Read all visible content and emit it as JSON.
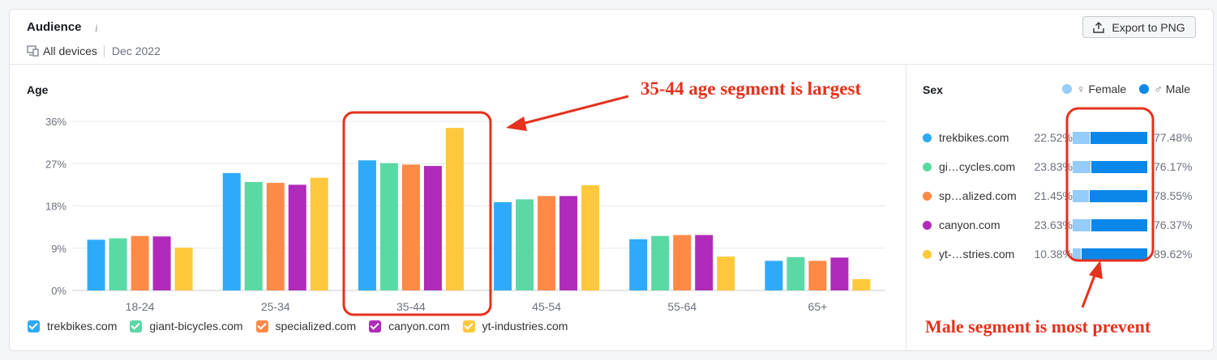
{
  "header": {
    "title": "Audience",
    "info_icon": "i",
    "device": "All devices",
    "date": "Dec 2022",
    "export_label": "Export to PNG"
  },
  "age": {
    "title": "Age"
  },
  "sex": {
    "title": "Sex",
    "legend_female": "Female",
    "legend_male": "Male",
    "female_symbol": "♀",
    "male_symbol": "♂",
    "colors": {
      "female": "#95ccf9",
      "male": "#0b87ea"
    },
    "rows": [
      {
        "name": "trekbikes.com",
        "female": "22.52%",
        "male": "77.48%",
        "color": "#2eaaf9"
      },
      {
        "name": "gi…cycles.com",
        "female": "23.83%",
        "male": "76.17%",
        "color": "#5ad9a4"
      },
      {
        "name": "sp…alized.com",
        "female": "21.45%",
        "male": "78.55%",
        "color": "#ff8a47"
      },
      {
        "name": "canyon.com",
        "female": "23.63%",
        "male": "76.37%",
        "color": "#b02bba"
      },
      {
        "name": "yt-…stries.com",
        "female": "10.38%",
        "male": "89.62%",
        "color": "#ffc83c"
      }
    ]
  },
  "annotations": {
    "age_note": "35-44 age segment is largest",
    "sex_note": "Male segment is most prevent"
  },
  "chart_data": [
    {
      "type": "bar",
      "title": "Age",
      "categories": [
        "18-24",
        "25-34",
        "35-44",
        "45-54",
        "55-64",
        "65+"
      ],
      "y_ticks": [
        "0%",
        "9%",
        "18%",
        "27%",
        "36%"
      ],
      "ylim": [
        0,
        36
      ],
      "grid": true,
      "legend_position": "bottom",
      "series": [
        {
          "name": "trekbikes.com",
          "color": "#2eaaf9",
          "values": [
            10.8,
            25.0,
            27.7,
            18.8,
            10.9,
            6.3
          ]
        },
        {
          "name": "giant-bicycles.com",
          "color": "#5ad9a4",
          "values": [
            11.1,
            23.1,
            27.1,
            19.4,
            11.6,
            7.1
          ]
        },
        {
          "name": "specialized.com",
          "color": "#ff8a47",
          "values": [
            11.6,
            22.9,
            26.8,
            20.1,
            11.8,
            6.3
          ]
        },
        {
          "name": "canyon.com",
          "color": "#b02bba",
          "values": [
            11.5,
            22.5,
            26.5,
            20.1,
            11.8,
            7.0
          ]
        },
        {
          "name": "yt-industries.com",
          "color": "#ffc83c",
          "values": [
            9.1,
            24.0,
            34.6,
            22.4,
            7.2,
            2.4
          ]
        }
      ]
    },
    {
      "type": "bar",
      "title": "Sex",
      "categories": [
        "trekbikes.com",
        "gi…cycles.com",
        "sp…alized.com",
        "canyon.com",
        "yt-…stries.com"
      ],
      "series": [
        {
          "name": "Female",
          "values": [
            22.52,
            23.83,
            21.45,
            23.63,
            10.38
          ]
        },
        {
          "name": "Male",
          "values": [
            77.48,
            76.17,
            78.55,
            76.37,
            89.62
          ]
        }
      ]
    }
  ]
}
